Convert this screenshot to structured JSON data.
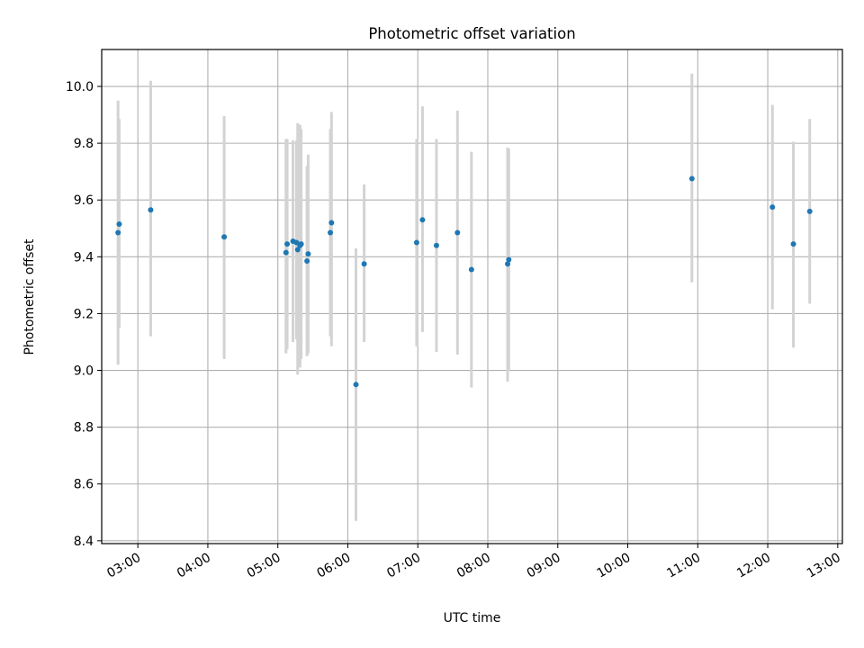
{
  "chart_data": {
    "type": "scatter",
    "title": "Photometric offset variation",
    "xlabel": "UTC time",
    "ylabel": "Photometric offset",
    "x_ticks": [
      "03:00",
      "04:00",
      "05:00",
      "06:00",
      "07:00",
      "08:00",
      "09:00",
      "10:00",
      "11:00",
      "12:00",
      "13:00"
    ],
    "y_ticks": [
      "8.4",
      "8.6",
      "8.8",
      "9.0",
      "9.2",
      "9.4",
      "9.6",
      "9.8",
      "10.0"
    ],
    "xlim": [
      "02:29",
      "13:04"
    ],
    "ylim": [
      8.39,
      10.13
    ],
    "grid": true,
    "colors": {
      "point": "#1f77b4",
      "errorbar": "#d3d3d3",
      "grid": "#b0b0b0"
    },
    "points": [
      {
        "x": "02:43",
        "y": 9.485,
        "ylow": 9.02,
        "yhigh": 9.95
      },
      {
        "x": "02:44",
        "y": 9.515,
        "ylow": 9.15,
        "yhigh": 9.885
      },
      {
        "x": "03:11",
        "y": 9.565,
        "ylow": 9.12,
        "yhigh": 10.02
      },
      {
        "x": "04:14",
        "y": 9.47,
        "ylow": 9.04,
        "yhigh": 9.895
      },
      {
        "x": "05:07",
        "y": 9.415,
        "ylow": 9.06,
        "yhigh": 9.815
      },
      {
        "x": "05:08",
        "y": 9.445,
        "ylow": 9.075,
        "yhigh": 9.815
      },
      {
        "x": "05:13",
        "y": 9.455,
        "ylow": 9.1,
        "yhigh": 9.81
      },
      {
        "x": "05:16",
        "y": 9.45,
        "ylow": 9.11,
        "yhigh": 9.81
      },
      {
        "x": "05:17",
        "y": 9.425,
        "ylow": 8.985,
        "yhigh": 9.87
      },
      {
        "x": "05:19",
        "y": 9.44,
        "ylow": 9.01,
        "yhigh": 9.865
      },
      {
        "x": "05:20",
        "y": 9.445,
        "ylow": 9.04,
        "yhigh": 9.85
      },
      {
        "x": "05:25",
        "y": 9.385,
        "ylow": 9.05,
        "yhigh": 9.72
      },
      {
        "x": "05:26",
        "y": 9.41,
        "ylow": 9.06,
        "yhigh": 9.76
      },
      {
        "x": "05:45",
        "y": 9.485,
        "ylow": 9.12,
        "yhigh": 9.85
      },
      {
        "x": "05:46",
        "y": 9.52,
        "ylow": 9.085,
        "yhigh": 9.91
      },
      {
        "x": "06:07",
        "y": 8.95,
        "ylow": 8.47,
        "yhigh": 9.43
      },
      {
        "x": "06:14",
        "y": 9.375,
        "ylow": 9.1,
        "yhigh": 9.655
      },
      {
        "x": "06:59",
        "y": 9.45,
        "ylow": 9.085,
        "yhigh": 9.815
      },
      {
        "x": "07:04",
        "y": 9.53,
        "ylow": 9.135,
        "yhigh": 9.93
      },
      {
        "x": "07:16",
        "y": 9.44,
        "ylow": 9.065,
        "yhigh": 9.815
      },
      {
        "x": "07:34",
        "y": 9.485,
        "ylow": 9.055,
        "yhigh": 9.915
      },
      {
        "x": "07:46",
        "y": 9.355,
        "ylow": 8.94,
        "yhigh": 9.77
      },
      {
        "x": "08:17",
        "y": 9.375,
        "ylow": 8.96,
        "yhigh": 9.785
      },
      {
        "x": "08:18",
        "y": 9.39,
        "ylow": 9.0,
        "yhigh": 9.78
      },
      {
        "x": "10:55",
        "y": 9.675,
        "ylow": 9.31,
        "yhigh": 10.045
      },
      {
        "x": "12:04",
        "y": 9.575,
        "ylow": 9.215,
        "yhigh": 9.935
      },
      {
        "x": "12:22",
        "y": 9.445,
        "ylow": 9.08,
        "yhigh": 9.805
      },
      {
        "x": "12:36",
        "y": 9.56,
        "ylow": 9.235,
        "yhigh": 9.885
      }
    ]
  }
}
